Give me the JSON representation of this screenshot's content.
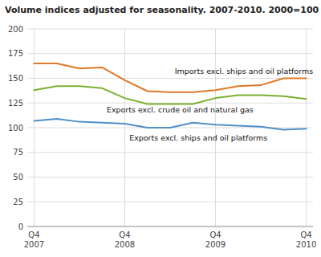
{
  "chart_data": {
    "type": "line",
    "title": "Volume indices adjusted for seasonality. 2007-2010. 2000=100",
    "categories": [
      "Q4\n2007",
      null,
      null,
      null,
      "Q4\n2008",
      null,
      null,
      null,
      "Q4\n2009",
      null,
      null,
      null,
      "Q4\n2010"
    ],
    "series": [
      {
        "name": "Imports excl. ships and oil platforms",
        "color": "#e07828",
        "values": [
          165,
          165,
          160,
          161,
          148,
          137,
          136,
          136,
          138,
          142,
          143,
          150,
          150
        ]
      },
      {
        "name": "Exports excl. crude oil and natural gas",
        "color": "#7ab030",
        "values": [
          138,
          142,
          142,
          140,
          130,
          124,
          124,
          124,
          130,
          133,
          133,
          132,
          129
        ]
      },
      {
        "name": "Exports excl. ships and oil platforms",
        "color": "#5090c8",
        "values": [
          107,
          109,
          106,
          105,
          104,
          100,
          100,
          105,
          103,
          102,
          101,
          98,
          99
        ]
      }
    ],
    "annotations": [
      {
        "text": "Imports excl. ships and oil platforms",
        "x": 6.2,
        "y": 157
      },
      {
        "text": "Exports excl. crude oil and natural gas",
        "x": 3.2,
        "y": 118
      },
      {
        "text": "Exports excl. ships and oil platforms",
        "x": 4.2,
        "y": 90
      }
    ],
    "ylim": [
      0,
      200
    ],
    "yticks": [
      0,
      25,
      50,
      75,
      100,
      125,
      150,
      175,
      200
    ],
    "grid": true
  }
}
